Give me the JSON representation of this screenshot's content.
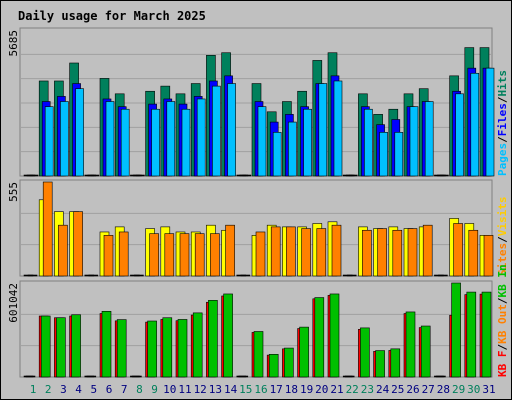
{
  "title": "Daily usage for March 2025",
  "colors": {
    "hits": "#00805c",
    "files": "#0000ff",
    "pages": "#00c0ff",
    "visits": "#ffff00",
    "sites": "#ff8000",
    "kb_in": "#00c000",
    "kb_out": "#ff0000",
    "title": "#0000ff",
    "weekend_label": "#00805c",
    "weekday_label": "#000080"
  },
  "legend": {
    "top": {
      "hits": "Hits",
      "files": "Files",
      "pages": "Pages",
      "sep": "/"
    },
    "middle": {
      "visits": "Visits",
      "sites": "Sites",
      "sep": "/"
    },
    "bottom": {
      "kb_in": "KB In",
      "kb_out": "KB Out",
      "kb_f": "KB F",
      "sep": "/"
    }
  },
  "axis": {
    "top_max_label": "5685",
    "middle_max_label": "555",
    "bottom_max_label": "601042"
  },
  "chart_data": [
    {
      "type": "bar",
      "title": "Daily usage for March 2025",
      "x": [
        1,
        2,
        3,
        4,
        5,
        6,
        7,
        8,
        9,
        10,
        11,
        12,
        13,
        14,
        15,
        16,
        17,
        18,
        19,
        20,
        21,
        22,
        23,
        24,
        25,
        26,
        27,
        28,
        29,
        30,
        31
      ],
      "weekend_days": [
        1,
        2,
        8,
        9,
        15,
        16,
        22,
        23,
        29,
        30
      ],
      "ylim": [
        0,
        5685
      ],
      "series": [
        {
          "name": "Hits",
          "values": [
            0,
            3700,
            3700,
            4400,
            0,
            3800,
            3200,
            0,
            3300,
            3500,
            3200,
            3600,
            4700,
            4800,
            0,
            3600,
            2500,
            2900,
            3300,
            4500,
            4800,
            0,
            3200,
            2400,
            2600,
            3200,
            3400,
            0,
            3900,
            5000,
            5000
          ]
        },
        {
          "name": "Files",
          "values": [
            0,
            2900,
            3100,
            3600,
            0,
            3000,
            2700,
            0,
            2800,
            3000,
            2800,
            3100,
            3700,
            3900,
            0,
            2900,
            2100,
            2400,
            2700,
            3600,
            3900,
            0,
            2700,
            2000,
            2200,
            2700,
            2900,
            0,
            3300,
            4200,
            4200
          ]
        },
        {
          "name": "Pages",
          "values": [
            0,
            2700,
            2900,
            3400,
            0,
            2900,
            2600,
            0,
            2600,
            2900,
            2600,
            3000,
            3500,
            3600,
            0,
            2700,
            1700,
            2100,
            2600,
            3600,
            3700,
            0,
            2600,
            1700,
            1700,
            2700,
            2900,
            0,
            3200,
            4000,
            4200
          ]
        }
      ]
    },
    {
      "type": "bar",
      "ylim": [
        0,
        555
      ],
      "series": [
        {
          "name": "Visits",
          "values": [
            0,
            450,
            380,
            380,
            0,
            260,
            290,
            0,
            280,
            290,
            260,
            260,
            300,
            270,
            0,
            240,
            300,
            290,
            290,
            310,
            320,
            0,
            290,
            280,
            290,
            280,
            290,
            0,
            340,
            310,
            240
          ]
        },
        {
          "name": "Sites",
          "values": [
            0,
            555,
            300,
            380,
            0,
            240,
            260,
            0,
            250,
            250,
            250,
            250,
            250,
            300,
            0,
            260,
            290,
            290,
            280,
            280,
            300,
            0,
            270,
            280,
            270,
            280,
            300,
            0,
            310,
            270,
            240
          ]
        }
      ]
    },
    {
      "type": "bar",
      "ylim": [
        0,
        601042
      ],
      "series": [
        {
          "name": "KB In",
          "values": [
            0,
            390000,
            379000,
            398000,
            0,
            420000,
            367000,
            0,
            358000,
            379000,
            368000,
            410000,
            490000,
            531000,
            0,
            291000,
            145000,
            185000,
            319000,
            508000,
            531000,
            0,
            314000,
            169000,
            180000,
            416000,
            326000,
            0,
            601000,
            543000,
            543000
          ]
        },
        {
          "name": "KB Out",
          "values": [
            0,
            390000,
            379000,
            390000,
            0,
            406000,
            359000,
            0,
            351000,
            368000,
            360000,
            396000,
            478000,
            518000,
            0,
            285000,
            140000,
            180000,
            310000,
            500000,
            522000,
            0,
            305000,
            164000,
            170000,
            406000,
            316000,
            0,
            395000,
            527000,
            530000
          ]
        }
      ]
    }
  ]
}
